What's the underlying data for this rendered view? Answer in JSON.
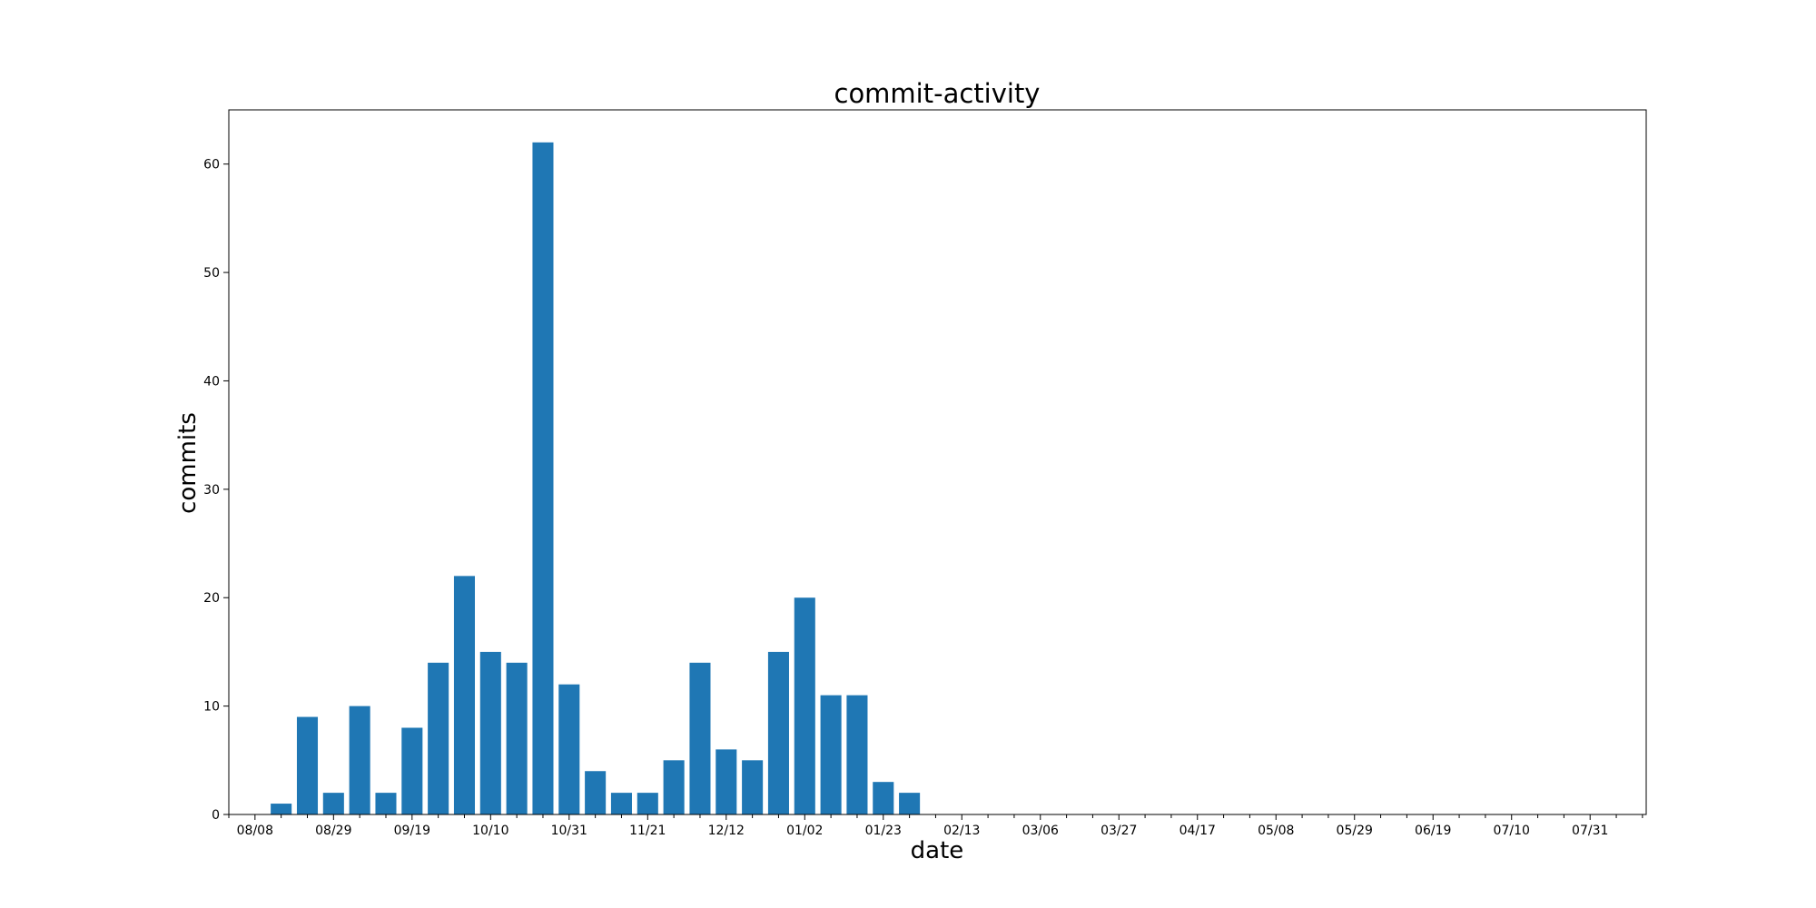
{
  "chart_data": {
    "type": "bar",
    "title": "commit-activity",
    "xlabel": "date",
    "ylabel": "commits",
    "ylim": [
      0,
      65
    ],
    "yticks": [
      0,
      10,
      20,
      30,
      40,
      50,
      60
    ],
    "xlim": [
      "2021-08-01",
      "2022-08-15"
    ],
    "x_ticks": [
      {
        "date": "2021-08-08",
        "label": "08/08"
      },
      {
        "date": "2021-08-29",
        "label": "08/29"
      },
      {
        "date": "2021-09-19",
        "label": "09/19"
      },
      {
        "date": "2021-10-10",
        "label": "10/10"
      },
      {
        "date": "2021-10-31",
        "label": "10/31"
      },
      {
        "date": "2021-11-21",
        "label": "11/21"
      },
      {
        "date": "2021-12-12",
        "label": "12/12"
      },
      {
        "date": "2022-01-02",
        "label": "01/02"
      },
      {
        "date": "2022-01-23",
        "label": "01/23"
      },
      {
        "date": "2022-02-13",
        "label": "02/13"
      },
      {
        "date": "2022-03-06",
        "label": "03/06"
      },
      {
        "date": "2022-03-27",
        "label": "03/27"
      },
      {
        "date": "2022-04-17",
        "label": "04/17"
      },
      {
        "date": "2022-05-08",
        "label": "05/08"
      },
      {
        "date": "2022-05-29",
        "label": "05/29"
      },
      {
        "date": "2022-06-19",
        "label": "06/19"
      },
      {
        "date": "2022-07-10",
        "label": "07/10"
      },
      {
        "date": "2022-07-31",
        "label": "07/31"
      }
    ],
    "minor_tick_interval_days": 7,
    "bar_width_days": 5.6,
    "bar_color": "#1f77b4",
    "grid": false,
    "legend": "none",
    "series": [
      {
        "dates": [
          "2021-08-15",
          "2021-08-22",
          "2021-08-29",
          "2021-09-05",
          "2021-09-12",
          "2021-09-19",
          "2021-09-26",
          "2021-10-03",
          "2021-10-10",
          "2021-10-17",
          "2021-10-24",
          "2021-10-31",
          "2021-11-07",
          "2021-11-14",
          "2021-11-21",
          "2021-11-28",
          "2021-12-05",
          "2021-12-12",
          "2021-12-19",
          "2021-12-26",
          "2022-01-02",
          "2022-01-09",
          "2022-01-16",
          "2022-01-23",
          "2022-01-30"
        ],
        "values": [
          1,
          9,
          2,
          10,
          2,
          8,
          14,
          22,
          15,
          14,
          62,
          12,
          4,
          2,
          2,
          5,
          14,
          6,
          5,
          15,
          20,
          11,
          11,
          3,
          2
        ]
      }
    ]
  }
}
